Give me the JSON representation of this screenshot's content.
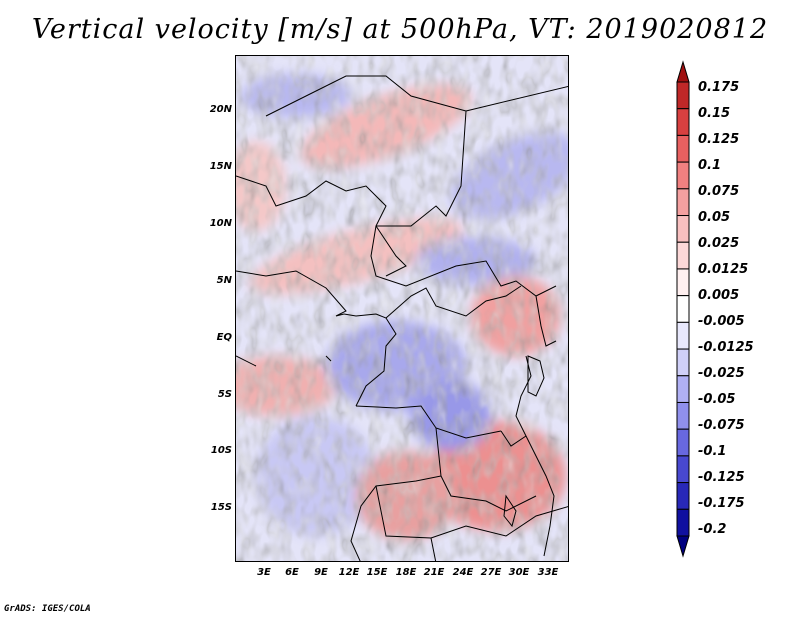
{
  "title": "Vertical velocity [m/s] at 500hPa, VT: 2019020812",
  "map": {
    "lat_labels": [
      "20N",
      "15N",
      "10N",
      "5N",
      "EQ",
      "5S",
      "10S",
      "15S"
    ],
    "lon_labels": [
      "3E",
      "6E",
      "9E",
      "12E",
      "15E",
      "18E",
      "21E",
      "24E",
      "27E",
      "30E",
      "33E"
    ],
    "background": "#e8e8f8"
  },
  "colorbar": {
    "labels": [
      "0.175",
      "0.15",
      "0.125",
      "0.1",
      "0.075",
      "0.05",
      "0.025",
      "0.0125",
      "0.005",
      "-0.005",
      "-0.0125",
      "-0.025",
      "-0.05",
      "-0.075",
      "-0.1",
      "-0.125",
      "-0.175",
      "-0.2"
    ],
    "colors": [
      "#a01010",
      "#c02828",
      "#d84040",
      "#e86060",
      "#f08080",
      "#f4a0a0",
      "#f8c0c0",
      "#fcd8d8",
      "#fff0f0",
      "#ffffff",
      "#e8e8fc",
      "#d0d0f8",
      "#b0b0f4",
      "#9090ec",
      "#6868e0",
      "#4848d0",
      "#2828b8",
      "#1010a0",
      "#000080"
    ]
  },
  "credit": "GrADS: IGES/COLA"
}
